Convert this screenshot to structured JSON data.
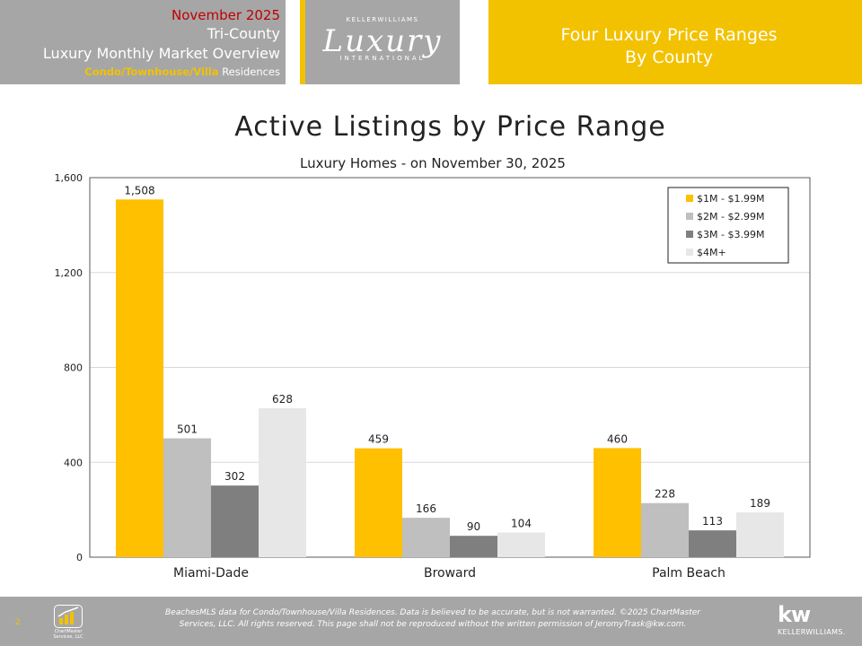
{
  "header": {
    "date": "November 2025",
    "region": "Tri-County",
    "report": "Luxury Monthly Market Overview",
    "property_type": "Condo/Townhouse/Villa",
    "property_suffix": " Residences",
    "logo_top": "KELLERWILLIAMS",
    "logo_word": "Luxury",
    "logo_bottom": "INTERNATIONAL",
    "right_line1": "Four Luxury Price Ranges",
    "right_line2": "By County"
  },
  "colors": {
    "gold": "#ffc000",
    "light_gray": "#bfbfbf",
    "dark_gray": "#7f7f7f",
    "pale_gray": "#e7e7e7",
    "header_gray": "#a6a6a6",
    "accent_red": "#c00000"
  },
  "chart_data": {
    "type": "bar",
    "title": "Active Listings by Price Range",
    "subtitle": "Luxury Homes - on November 30, 2025",
    "categories": [
      "Miami-Dade",
      "Broward",
      "Palm Beach"
    ],
    "series": [
      {
        "name": "$1M - $1.99M",
        "values": [
          1508,
          459,
          460
        ],
        "color": "#ffc000"
      },
      {
        "name": "$2M - $2.99M",
        "values": [
          501,
          166,
          228
        ],
        "color": "#bfbfbf"
      },
      {
        "name": "$3M - $3.99M",
        "values": [
          302,
          90,
          113
        ],
        "color": "#7f7f7f"
      },
      {
        "name": "$4M+",
        "values": [
          628,
          104,
          189
        ],
        "color": "#e7e7e7"
      }
    ],
    "yticks": [
      0,
      400,
      800,
      1200,
      1600
    ],
    "ylim": [
      0,
      1600
    ],
    "grid": true,
    "legend_position": "top-right",
    "data_labels": true
  },
  "footer": {
    "page_number": "2",
    "logo_text": "ChartMaster Services, LLC",
    "disclaimer_line1": "BeachesMLS data for Condo/Townhouse/Villa Residences.  Data is believed to be accurate, but is not warranted.   ©2025 ChartMaster",
    "disclaimer_line2": "Services, LLC.  All rights reserved. This page shall not be reproduced without the written permission of JeromyTrask@kw.com.",
    "kw_mark": "kw",
    "kw_name": "KELLERWILLIAMS."
  }
}
